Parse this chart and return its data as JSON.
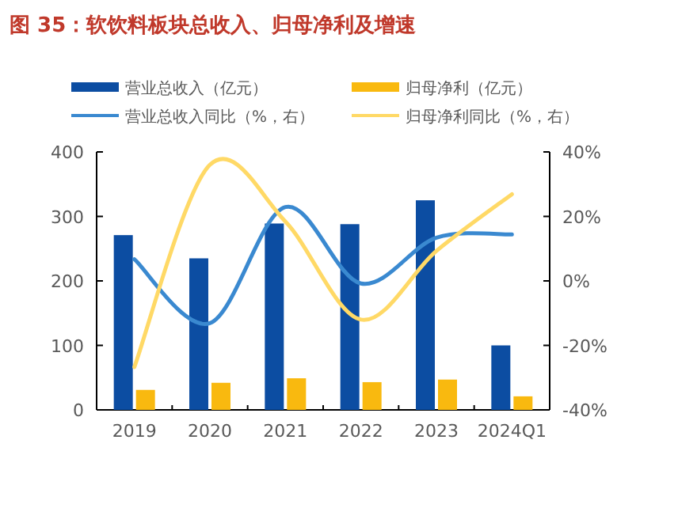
{
  "chart_data": {
    "type": "bar",
    "title": "图 35：软饮料板块总收入、归母净利及增速",
    "categories": [
      "2019",
      "2020",
      "2021",
      "2022",
      "2023",
      "2024Q1"
    ],
    "series": [
      {
        "name": "营业总收入（亿元）",
        "color": "#0c4da2",
        "values": [
          271,
          235,
          289,
          288,
          325,
          100
        ]
      },
      {
        "name": "归母净利（亿元）",
        "color": "#f9b90f",
        "values": [
          31,
          42,
          49,
          43,
          47,
          21
        ]
      },
      {
        "name": "营业总收入同比（%，右）",
        "type": "line",
        "axis": "y2",
        "color": "#3a89d0",
        "values": [
          6.7,
          -13.1,
          22.9,
          -0.8,
          13.4,
          14.4
        ]
      },
      {
        "name": "归母净利同比（%，右）",
        "type": "line",
        "axis": "y2",
        "color": "#ffd966",
        "values": [
          -26.7,
          36,
          18.4,
          -12,
          9.3,
          26.9
        ]
      }
    ],
    "ylim": [
      0,
      400
    ],
    "yticks": [
      0,
      100,
      200,
      300,
      400
    ],
    "y2lim": [
      -40,
      40
    ],
    "y2ticks": [
      {
        "value": -40,
        "label": "-40%"
      },
      {
        "value": -20,
        "label": "-20%"
      },
      {
        "value": 0,
        "label": "0%"
      },
      {
        "value": 20,
        "label": "20%"
      },
      {
        "value": 40,
        "label": "40%"
      }
    ],
    "legend": "top"
  }
}
